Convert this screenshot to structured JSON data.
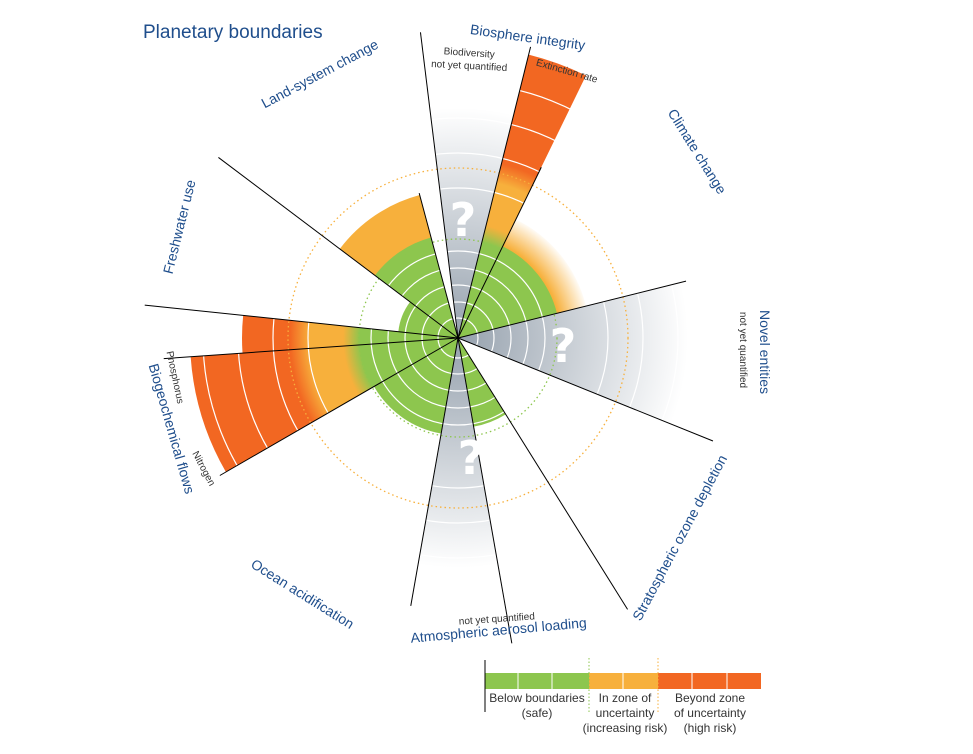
{
  "title": "Planetary boundaries",
  "boundaries": {
    "land_system_change": "Land-system change",
    "biosphere_integrity": "Biosphere integrity",
    "biodiversity": "Biodiversity",
    "extinction_rate": "Extinction rate",
    "climate_change": "Climate change",
    "novel_entities": "Novel entities",
    "stratospheric_ozone": "Stratospheric ozone depletion",
    "aerosol_loading": "Atmospheric aerosol loading",
    "ocean_acidification": "Ocean acidification",
    "biogeochemical_flows": "Biogeochemical flows",
    "phosphorus": "Phosphorus",
    "nitrogen": "Nitrogen",
    "freshwater_use": "Freshwater use"
  },
  "not_quantified": "not yet quantified",
  "unknown_mark": "?",
  "legend": {
    "safe": "Below boundaries\n(safe)",
    "uncertainty": "In zone of\nuncertainty\n(increasing risk)",
    "beyond": "Beyond zone\nof uncertainty\n(high risk)"
  },
  "colors": {
    "safe": "#8dc64e",
    "uncertainty": "#f7b03c",
    "beyond": "#f26722",
    "label": "#1f4e8c",
    "unknown": "#9aa5b1"
  }
}
